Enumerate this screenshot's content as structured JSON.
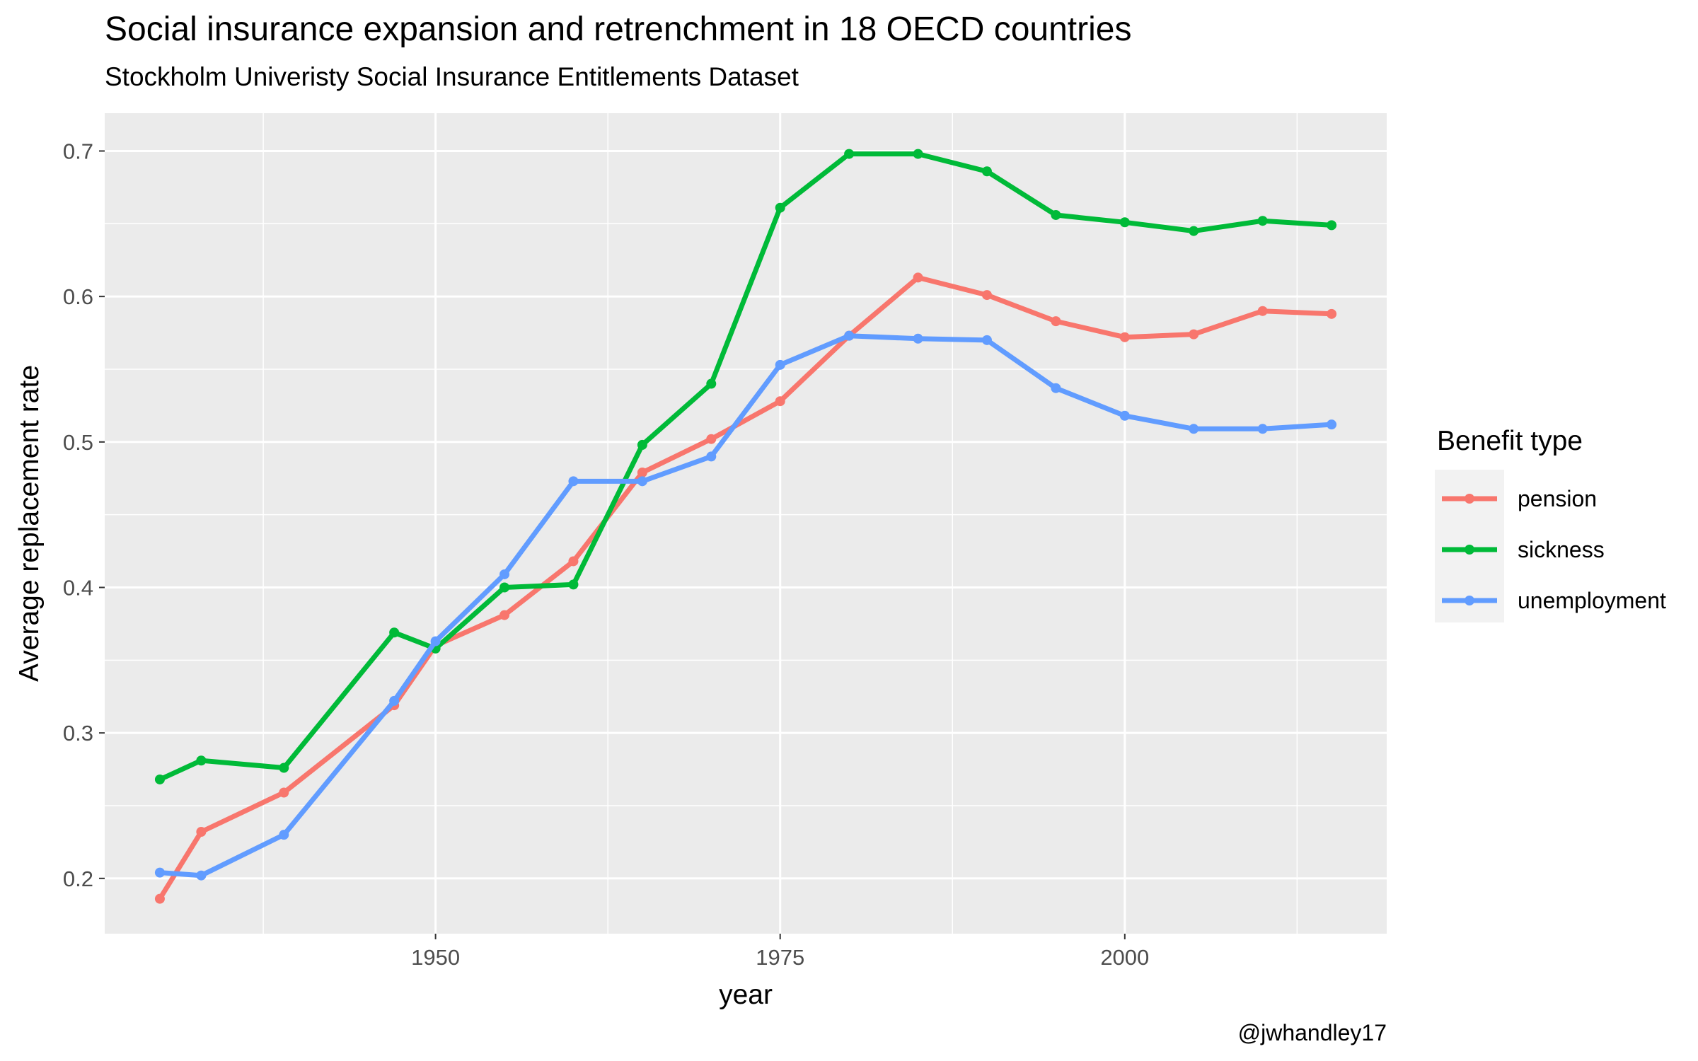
{
  "chart_data": {
    "type": "line",
    "title": "Social insurance expansion and retrenchment in 18 OECD countries",
    "subtitle": "Stockholm Univeristy Social Insurance Entitlements Dataset",
    "xlabel": "year",
    "ylabel": "Average replacement rate",
    "caption": "@jwhandley17",
    "xlim": [
      1926,
      2019
    ],
    "ylim": [
      0.162,
      0.726
    ],
    "x_ticks": [
      1950,
      1975,
      2000
    ],
    "y_ticks": [
      0.2,
      0.3,
      0.4,
      0.5,
      0.6,
      0.7
    ],
    "grid": true,
    "legend": {
      "title": "Benefit type",
      "position": "right"
    },
    "x": [
      1930,
      1933,
      1939,
      1947,
      1950,
      1955,
      1960,
      1965,
      1970,
      1975,
      1980,
      1985,
      1990,
      1995,
      2000,
      2005,
      2010,
      2015
    ],
    "series": [
      {
        "name": "pension",
        "color": "#F8766D",
        "values": [
          0.186,
          0.232,
          0.259,
          0.319,
          0.36,
          0.381,
          0.418,
          0.479,
          0.502,
          0.528,
          0.573,
          0.613,
          0.601,
          0.583,
          0.572,
          0.574,
          0.59,
          0.588
        ]
      },
      {
        "name": "sickness",
        "color": "#00BA38",
        "values": [
          0.268,
          0.281,
          0.276,
          0.369,
          0.358,
          0.4,
          0.402,
          0.498,
          0.54,
          0.661,
          0.698,
          0.698,
          0.686,
          0.656,
          0.651,
          0.645,
          0.652,
          0.649
        ]
      },
      {
        "name": "unemployment",
        "color": "#619CFF",
        "values": [
          0.204,
          0.202,
          0.23,
          0.322,
          0.363,
          0.409,
          0.473,
          0.473,
          0.49,
          0.553,
          0.573,
          0.571,
          0.57,
          0.537,
          0.518,
          0.509,
          0.509,
          0.512
        ]
      }
    ]
  }
}
